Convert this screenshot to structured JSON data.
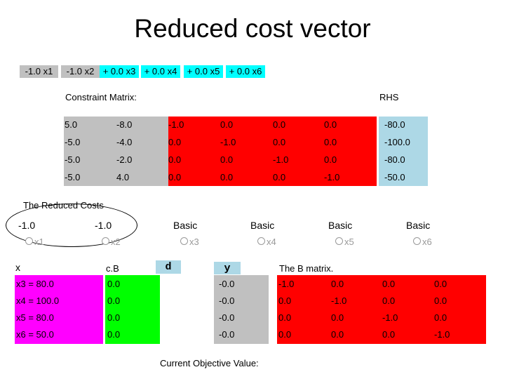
{
  "title": "Reduced cost vector",
  "objective_terms": [
    {
      "text": "-1.0 x1",
      "color": "#c0c0c0"
    },
    {
      "text": "-1.0 x2",
      "color": "#c0c0c0"
    },
    {
      "text": "+ 0.0 x3",
      "color": "#00ffff"
    },
    {
      "text": "+ 0.0 x4",
      "color": "#00ffff"
    },
    {
      "text": "+ 0.0 x5",
      "color": "#00ffff"
    },
    {
      "text": "+ 0.0 x6",
      "color": "#00ffff"
    }
  ],
  "constraint_matrix": {
    "label": "Constraint Matrix:",
    "rhs_label": "RHS",
    "rows": [
      [
        "5.0",
        "-8.0",
        "-1.0",
        "0.0",
        "0.0",
        "0.0"
      ],
      [
        "-5.0",
        "-4.0",
        "0.0",
        "-1.0",
        "0.0",
        "0.0"
      ],
      [
        "-5.0",
        "-2.0",
        "0.0",
        "0.0",
        "-1.0",
        "0.0"
      ],
      [
        "-5.0",
        "4.0",
        "0.0",
        "0.0",
        "0.0",
        "-1.0"
      ]
    ],
    "rhs": [
      "-80.0",
      "-100.0",
      "-80.0",
      "-50.0"
    ]
  },
  "reduced_costs": {
    "label": "The Reduced Costs",
    "entries": [
      {
        "value": "-1.0",
        "var": "x1"
      },
      {
        "value": "-1.0",
        "var": "x2"
      },
      {
        "value": "Basic",
        "var": "x3"
      },
      {
        "value": "Basic",
        "var": "x4"
      },
      {
        "value": "Basic",
        "var": "x5"
      },
      {
        "value": "Basic",
        "var": "x6"
      }
    ]
  },
  "lower": {
    "x_label": "x",
    "cb_label": "c.B",
    "d_label": "d",
    "y_label": "y",
    "bmatrix_label": "The B matrix.",
    "x_values": [
      "x3 = 80.0",
      "x4 = 100.0",
      "x5 = 80.0",
      "x6 = 50.0"
    ],
    "cb_values": [
      "0.0",
      "0.0",
      "0.0",
      "0.0"
    ],
    "y_values": [
      "-0.0",
      "-0.0",
      "-0.0",
      "-0.0"
    ],
    "b_matrix": [
      [
        "-1.0",
        "0.0",
        "0.0",
        "0.0"
      ],
      [
        "0.0",
        "-1.0",
        "0.0",
        "0.0"
      ],
      [
        "0.0",
        "0.0",
        "-1.0",
        "0.0"
      ],
      [
        "0.0",
        "0.0",
        "0.0",
        "-1.0"
      ]
    ],
    "objective_label": "Current Objective Value:"
  },
  "colors": {
    "gray": "#c0c0c0",
    "red": "#ff0000",
    "magenta": "#ff00ff",
    "green": "#00ff00",
    "cyan": "#00ffff",
    "light_blue": "#add8e6"
  }
}
